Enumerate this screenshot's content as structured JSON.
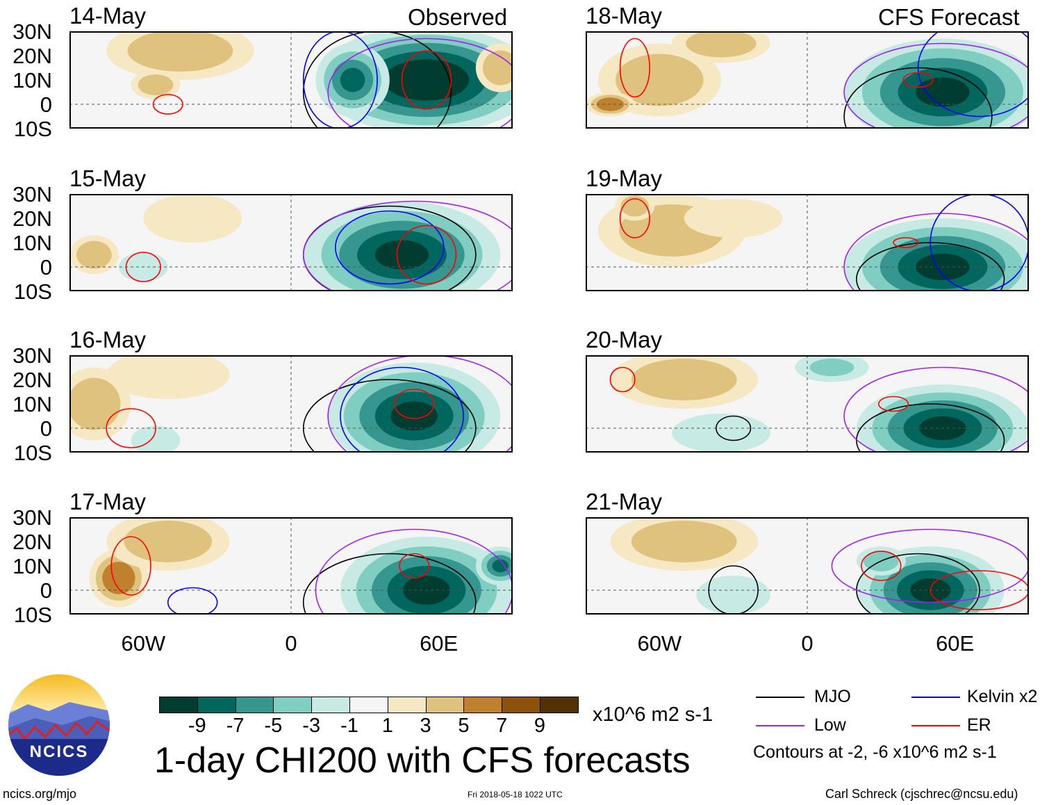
{
  "header": {
    "left_label": "Observed",
    "right_label": "CFS Forecast"
  },
  "axes": {
    "lat_ticks": [
      "30N",
      "20N",
      "10N",
      "0",
      "10S"
    ],
    "lon_ticks": [
      "60W",
      "0",
      "60E"
    ]
  },
  "colors": {
    "mjo": "#000000",
    "kelvin": "#0000ff",
    "low": "#a020f0",
    "er": "#ff0000"
  },
  "chart_data": {
    "type": "map",
    "title": "1-day CHI200 with CFS forecasts",
    "units": "x10^6 m2 s-1",
    "lon_range": [
      -90,
      90
    ],
    "lat_range": [
      -10,
      30
    ],
    "colorbar": {
      "ticks": [
        "-9",
        "-7",
        "-5",
        "-3",
        "-1",
        "1",
        "3",
        "5",
        "7",
        "9"
      ],
      "colors": [
        "#003c30",
        "#01665e",
        "#35978f",
        "#80cdc1",
        "#c7eae5",
        "#f5f5f5",
        "#f6e8c3",
        "#dfc27d",
        "#bf812d",
        "#8c510a",
        "#543005"
      ]
    },
    "panels": [
      {
        "date": "14-May",
        "blobs": [
          [
            -45,
            22,
            30,
            12,
            4
          ],
          [
            -55,
            8,
            10,
            6,
            5
          ],
          [
            55,
            10,
            45,
            22,
            -10
          ],
          [
            25,
            10,
            15,
            15,
            -7
          ],
          [
            85,
            15,
            10,
            10,
            4
          ]
        ],
        "contours": [
          [
            "mjo",
            35,
            5,
            30,
            25
          ],
          [
            "low",
            55,
            5,
            40,
            22
          ],
          [
            "kelvin",
            20,
            10,
            15,
            20
          ],
          [
            "er",
            55,
            10,
            10,
            12
          ],
          [
            "er",
            -50,
            0,
            6,
            4
          ]
        ]
      },
      {
        "date": "15-May",
        "blobs": [
          [
            -80,
            5,
            10,
            8,
            5
          ],
          [
            -40,
            20,
            20,
            10,
            3
          ],
          [
            45,
            5,
            40,
            22,
            -9
          ],
          [
            -60,
            0,
            10,
            6,
            -2
          ]
        ],
        "contours": [
          [
            "mjo",
            40,
            5,
            35,
            20
          ],
          [
            "low",
            50,
            5,
            45,
            22
          ],
          [
            "kelvin",
            40,
            8,
            22,
            15
          ],
          [
            "er",
            -60,
            0,
            7,
            6
          ],
          [
            "er",
            55,
            5,
            12,
            12
          ]
        ]
      },
      {
        "date": "16-May",
        "blobs": [
          [
            -80,
            10,
            15,
            15,
            4
          ],
          [
            -50,
            22,
            25,
            10,
            3
          ],
          [
            50,
            5,
            35,
            22,
            -9
          ],
          [
            -55,
            -5,
            10,
            6,
            -2
          ]
        ],
        "contours": [
          [
            "mjo",
            40,
            0,
            35,
            20
          ],
          [
            "low",
            55,
            5,
            40,
            25
          ],
          [
            "kelvin",
            45,
            5,
            25,
            20
          ],
          [
            "er",
            -65,
            0,
            10,
            8
          ],
          [
            "er",
            50,
            10,
            8,
            6
          ]
        ]
      },
      {
        "date": "17-May",
        "blobs": [
          [
            -70,
            5,
            12,
            12,
            6
          ],
          [
            -50,
            20,
            25,
            12,
            4
          ],
          [
            55,
            0,
            35,
            22,
            -9
          ],
          [
            85,
            10,
            10,
            8,
            -7
          ]
        ],
        "contours": [
          [
            "mjo",
            40,
            -5,
            35,
            20
          ],
          [
            "low",
            50,
            0,
            40,
            25
          ],
          [
            "kelvin",
            -40,
            -5,
            10,
            6
          ],
          [
            "er",
            -65,
            10,
            8,
            12
          ],
          [
            "er",
            50,
            10,
            6,
            5
          ]
        ]
      },
      {
        "date": "18-May",
        "blobs": [
          [
            -60,
            10,
            25,
            15,
            5
          ],
          [
            -35,
            25,
            20,
            8,
            4
          ],
          [
            55,
            5,
            40,
            22,
            -9
          ],
          [
            -80,
            0,
            10,
            5,
            6
          ]
        ],
        "contours": [
          [
            "mjo",
            45,
            -5,
            30,
            20
          ],
          [
            "low",
            55,
            5,
            40,
            20
          ],
          [
            "kelvin",
            70,
            15,
            25,
            20
          ],
          [
            "er",
            -70,
            15,
            6,
            12
          ],
          [
            "er",
            45,
            10,
            6,
            3
          ]
        ]
      },
      {
        "date": "19-May",
        "blobs": [
          [
            -55,
            15,
            30,
            15,
            4
          ],
          [
            -30,
            20,
            20,
            8,
            3
          ],
          [
            55,
            0,
            40,
            20,
            -9
          ],
          [
            -70,
            25,
            8,
            6,
            4
          ]
        ],
        "contours": [
          [
            "mjo",
            50,
            -5,
            30,
            15
          ],
          [
            "low",
            55,
            0,
            40,
            22
          ],
          [
            "kelvin",
            70,
            10,
            20,
            20
          ],
          [
            "er",
            -70,
            20,
            6,
            8
          ],
          [
            "er",
            40,
            10,
            5,
            2
          ]
        ]
      },
      {
        "date": "20-May",
        "blobs": [
          [
            -50,
            20,
            30,
            12,
            4
          ],
          [
            -35,
            -2,
            20,
            8,
            -1
          ],
          [
            55,
            0,
            35,
            18,
            -9
          ],
          [
            10,
            25,
            15,
            6,
            -3
          ]
        ],
        "contours": [
          [
            "mjo",
            50,
            -5,
            30,
            15
          ],
          [
            "low",
            55,
            5,
            40,
            20
          ],
          [
            "mjo",
            -30,
            0,
            7,
            5
          ],
          [
            "er",
            -75,
            20,
            5,
            5
          ],
          [
            "er",
            35,
            10,
            6,
            3
          ]
        ]
      },
      {
        "date": "21-May",
        "blobs": [
          [
            -50,
            20,
            30,
            12,
            4
          ],
          [
            -30,
            -2,
            15,
            8,
            -1
          ],
          [
            50,
            0,
            30,
            18,
            -9
          ],
          [
            30,
            12,
            10,
            6,
            -4
          ]
        ],
        "contours": [
          [
            "mjo",
            45,
            0,
            25,
            15
          ],
          [
            "low",
            50,
            10,
            40,
            15
          ],
          [
            "mjo",
            -30,
            0,
            10,
            10
          ],
          [
            "er",
            70,
            0,
            20,
            8
          ],
          [
            "er",
            30,
            10,
            8,
            6
          ]
        ]
      }
    ]
  },
  "legend": {
    "mjo": "MJO",
    "kelvin": "Kelvin x2",
    "low": "Low",
    "er": "ER",
    "note": "Contours at -2, -6 x10^6 m2 s-1"
  },
  "footer": {
    "logo_text": "NCICS",
    "url": "ncics.org/mjo",
    "timestamp": "Fri 2018-05-18 1022 UTC",
    "author": "Carl Schreck (cjschrec@ncsu.edu)"
  }
}
